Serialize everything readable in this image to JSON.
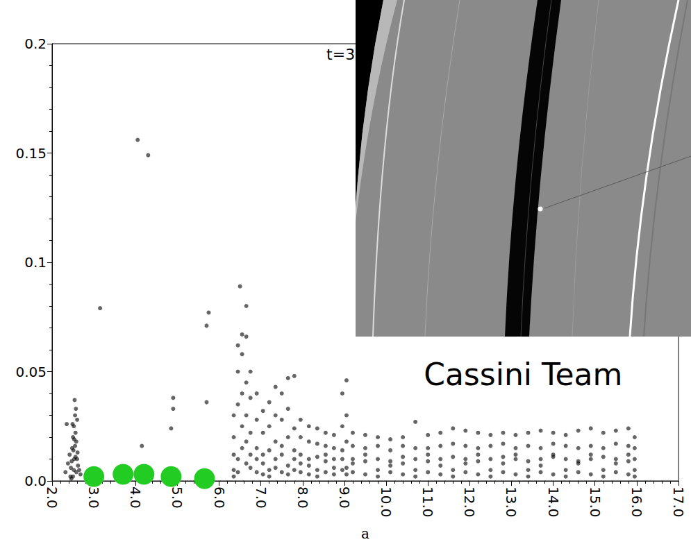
{
  "chart_data": {
    "type": "scatter",
    "x_label": "a",
    "xlim": [
      2,
      17
    ],
    "xticks": [
      {
        "value": 2,
        "label": "2.0"
      },
      {
        "value": 3,
        "label": "3.0"
      },
      {
        "value": 4,
        "label": "4.0"
      },
      {
        "value": 5,
        "label": "5.0"
      },
      {
        "value": 6,
        "label": "6.0"
      },
      {
        "value": 7,
        "label": "7.0"
      },
      {
        "value": 8,
        "label": "8.0"
      },
      {
        "value": 9,
        "label": "9.0"
      },
      {
        "value": 10,
        "label": "10.0"
      },
      {
        "value": 11,
        "label": "11.0"
      },
      {
        "value": 12,
        "label": "12.0"
      },
      {
        "value": 13,
        "label": "13.0"
      },
      {
        "value": 14,
        "label": "14.0"
      },
      {
        "value": 15,
        "label": "15.0"
      },
      {
        "value": 16,
        "label": "16.0"
      },
      {
        "value": 17,
        "label": "17.0"
      }
    ],
    "ylim": [
      0,
      0.2
    ],
    "yticks": [
      {
        "value": 0,
        "label": "0.0"
      },
      0.05,
      0.1,
      0.15,
      0.2
    ],
    "grid": false,
    "annotations": [
      {
        "text": "t=3",
        "x": 8.57,
        "y": 0.195
      },
      {
        "text": "Cassini Team",
        "x": 10.9,
        "y": 0.0486
      }
    ],
    "series": [
      {
        "color": "#000000",
        "marker": "point",
        "x": [
          2.32,
          2.38,
          2.42,
          2.45,
          2.48,
          2.5,
          2.52,
          2.55,
          2.58,
          2.6,
          2.62,
          2.65,
          2.68,
          2.44,
          2.5,
          2.53,
          2.56,
          2.6,
          2.47,
          2.51,
          2.54,
          2.57,
          2.49,
          2.55,
          2.52,
          2.58,
          2.46,
          2.61,
          2.53,
          2.56,
          2.35,
          3.15,
          4.05,
          4.3,
          4.15,
          4.9,
          4.9,
          4.85,
          5.7,
          5.75,
          5.7,
          6.5,
          6.65,
          6.35,
          6.35,
          6.35,
          6.35,
          6.35,
          6.45,
          6.45,
          6.45,
          6.45,
          6.45,
          6.55,
          6.55,
          6.55,
          6.55,
          6.55,
          6.65,
          6.65,
          6.65,
          6.65,
          6.65,
          6.75,
          6.75,
          6.75,
          6.75,
          6.75,
          6.9,
          6.9,
          6.9,
          6.9,
          6.9,
          7.05,
          7.05,
          7.05,
          7.05,
          7.05,
          7.2,
          7.2,
          7.2,
          7.2,
          7.2,
          7.35,
          7.35,
          7.35,
          7.35,
          7.35,
          7.5,
          7.5,
          7.5,
          7.5,
          7.5,
          7.65,
          7.65,
          7.65,
          7.65,
          7.65,
          7.8,
          7.8,
          7.8,
          7.8,
          7.8,
          7.95,
          7.95,
          7.95,
          7.95,
          7.95,
          8.15,
          8.15,
          8.15,
          8.15,
          8.15,
          8.35,
          8.35,
          8.35,
          8.35,
          8.35,
          8.55,
          8.55,
          8.55,
          8.55,
          8.55,
          8.75,
          8.75,
          8.75,
          8.75,
          8.75,
          8.95,
          8.95,
          8.95,
          8.95,
          8.95,
          9.05,
          9.05,
          9.05,
          9.05,
          9.05,
          9.2,
          9.2,
          9.2,
          9.2,
          9.2,
          9.5,
          9.5,
          9.5,
          9.5,
          9.5,
          9.8,
          9.8,
          9.8,
          9.8,
          9.8,
          10.1,
          10.1,
          10.1,
          10.1,
          10.1,
          10.4,
          10.4,
          10.4,
          10.4,
          10.4,
          10.7,
          10.7,
          10.7,
          10.7,
          10.7,
          11.0,
          11.0,
          11.0,
          11.0,
          11.0,
          11.3,
          11.3,
          11.3,
          11.3,
          11.3,
          11.6,
          11.6,
          11.6,
          11.6,
          11.6,
          11.9,
          11.9,
          11.9,
          11.9,
          11.9,
          12.2,
          12.2,
          12.2,
          12.2,
          12.2,
          12.5,
          12.5,
          12.5,
          12.5,
          12.5,
          12.8,
          12.8,
          12.8,
          12.8,
          12.8,
          13.1,
          13.1,
          13.1,
          13.1,
          13.1,
          13.4,
          13.4,
          13.4,
          13.4,
          13.4,
          13.7,
          13.7,
          13.7,
          13.7,
          13.7,
          14.0,
          14.0,
          14.0,
          14.0,
          14.0,
          14.3,
          14.3,
          14.3,
          14.3,
          14.3,
          14.6,
          14.6,
          14.6,
          14.6,
          14.6,
          14.9,
          14.9,
          14.9,
          14.9,
          14.9,
          15.2,
          15.2,
          15.2,
          15.2,
          15.2,
          15.5,
          15.5,
          15.5,
          15.5,
          15.5,
          15.8,
          15.8,
          15.8,
          15.8,
          15.8,
          15.95,
          15.95,
          15.95,
          15.95,
          15.95
        ],
        "values": [
          0.004,
          0.008,
          0.012,
          0.006,
          0.015,
          0.02,
          0.025,
          0.03,
          0.018,
          0.01,
          0.007,
          0.005,
          0.003,
          0.002,
          0.002,
          0.01,
          0.022,
          0.028,
          0.009,
          0.014,
          0.037,
          0.033,
          0.026,
          0.016,
          0.005,
          0.004,
          0.001,
          0.013,
          0.019,
          0.011,
          0.026,
          0.079,
          0.156,
          0.149,
          0.016,
          0.038,
          0.033,
          0.024,
          0.071,
          0.077,
          0.036,
          0.089,
          0.08,
          0.005,
          0.012,
          0.02,
          0.03,
          0.002,
          0.01,
          0.035,
          0.05,
          0.062,
          0.004,
          0.015,
          0.04,
          0.058,
          0.067,
          0.025,
          0.008,
          0.03,
          0.045,
          0.066,
          0.018,
          0.006,
          0.022,
          0.038,
          0.05,
          0.012,
          0.004,
          0.015,
          0.028,
          0.04,
          0.01,
          0.003,
          0.012,
          0.022,
          0.032,
          0.008,
          0.005,
          0.014,
          0.025,
          0.036,
          0.002,
          0.006,
          0.018,
          0.03,
          0.043,
          0.01,
          0.004,
          0.016,
          0.028,
          0.04,
          0.012,
          0.007,
          0.02,
          0.033,
          0.047,
          0.003,
          0.005,
          0.014,
          0.024,
          0.048,
          0.01,
          0.004,
          0.012,
          0.02,
          0.028,
          0.008,
          0.003,
          0.01,
          0.018,
          0.025,
          0.007,
          0.005,
          0.011,
          0.017,
          0.024,
          0.002,
          0.004,
          0.009,
          0.016,
          0.022,
          0.012,
          0.003,
          0.01,
          0.015,
          0.021,
          0.006,
          0.005,
          0.014,
          0.025,
          0.04,
          0.01,
          0.006,
          0.018,
          0.03,
          0.046,
          0.003,
          0.004,
          0.01,
          0.016,
          0.022,
          0.008,
          0.003,
          0.009,
          0.015,
          0.021,
          0.012,
          0.005,
          0.01,
          0.016,
          0.02,
          0.002,
          0.004,
          0.009,
          0.014,
          0.019,
          0.007,
          0.003,
          0.011,
          0.016,
          0.02,
          0.008,
          0.005,
          0.01,
          0.015,
          0.027,
          0.002,
          0.004,
          0.009,
          0.015,
          0.021,
          0.012,
          0.003,
          0.01,
          0.016,
          0.022,
          0.007,
          0.005,
          0.011,
          0.017,
          0.024,
          0.002,
          0.004,
          0.01,
          0.016,
          0.023,
          0.008,
          0.003,
          0.009,
          0.015,
          0.022,
          0.012,
          0.005,
          0.01,
          0.016,
          0.021,
          0.002,
          0.004,
          0.011,
          0.017,
          0.022,
          0.008,
          0.003,
          0.01,
          0.015,
          0.021,
          0.012,
          0.005,
          0.009,
          0.016,
          0.022,
          0.002,
          0.004,
          0.01,
          0.015,
          0.023,
          0.007,
          0.003,
          0.011,
          0.017,
          0.022,
          0.012,
          0.005,
          0.01,
          0.016,
          0.021,
          0.002,
          0.004,
          0.009,
          0.015,
          0.023,
          0.008,
          0.003,
          0.01,
          0.016,
          0.024,
          0.012,
          0.005,
          0.011,
          0.015,
          0.022,
          0.002,
          0.004,
          0.01,
          0.017,
          0.023,
          0.008,
          0.003,
          0.009,
          0.016,
          0.024,
          0.012,
          0.005,
          0.01,
          0.015,
          0.02,
          0.002
        ]
      },
      {
        "color": "#22cc22",
        "marker": "disc",
        "x": [
          3.0,
          3.7,
          4.2,
          4.85,
          5.65
        ],
        "values": [
          0.002,
          0.003,
          0.003,
          0.002,
          0.001
        ]
      }
    ]
  }
}
